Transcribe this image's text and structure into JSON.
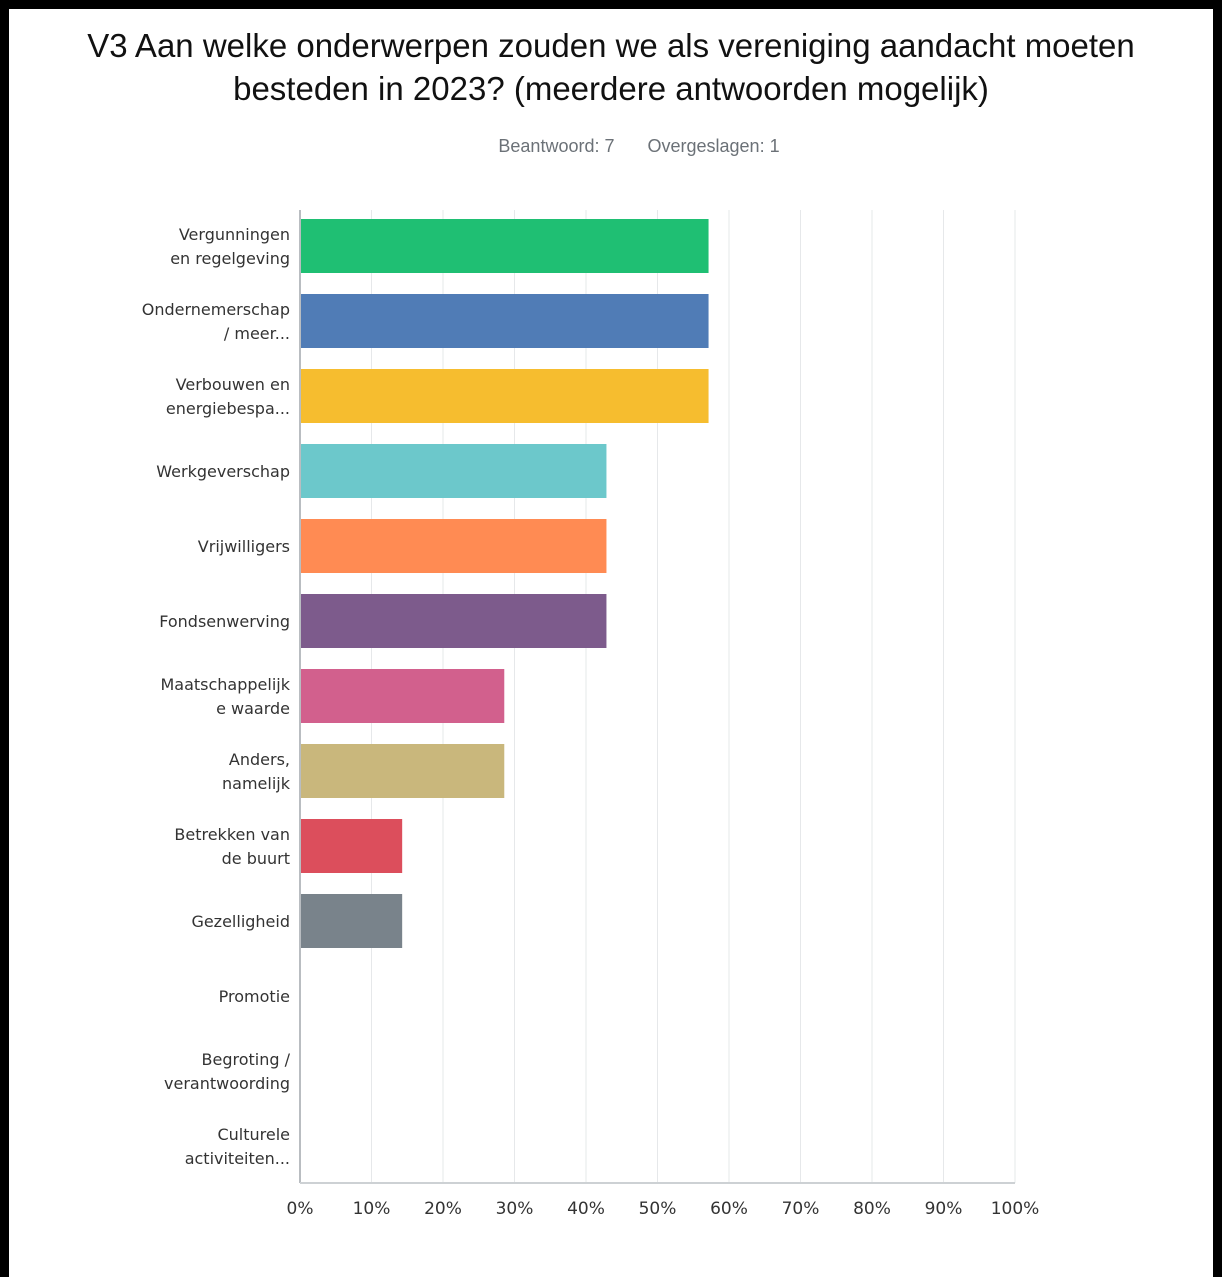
{
  "title_lines": [
    "V3 Aan welke onderwerpen zouden we als vereniging aandacht moeten",
    "besteden in 2023? (meerdere antwoorden mogelijk)"
  ],
  "respondents": {
    "answered": "Beantwoord: 7",
    "skipped": "Overgeslagen: 1"
  },
  "chart_data": {
    "type": "bar",
    "orientation": "horizontal",
    "grid": true,
    "xlim": [
      0,
      100
    ],
    "x_ticks": [
      "0%",
      "10%",
      "20%",
      "30%",
      "40%",
      "50%",
      "60%",
      "70%",
      "80%",
      "90%",
      "100%"
    ],
    "categories": [
      [
        "Vergunningen",
        "en regelgeving"
      ],
      [
        "Ondernemerschap",
        "/ meer..."
      ],
      [
        "Verbouwen en",
        "energiebespa..."
      ],
      [
        "Werkgeverschap"
      ],
      [
        "Vrijwilligers"
      ],
      [
        "Fondsenwerving"
      ],
      [
        "Maatschappelijk",
        "e waarde"
      ],
      [
        "Anders,",
        "namelijk"
      ],
      [
        "Betrekken van",
        "de buurt"
      ],
      [
        "Gezelligheid"
      ],
      [
        "Promotie"
      ],
      [
        "Begroting /",
        "verantwoording"
      ],
      [
        "Culturele",
        "activiteiten..."
      ]
    ],
    "values": [
      57.14,
      57.14,
      57.14,
      42.86,
      42.86,
      42.86,
      28.57,
      28.57,
      14.29,
      14.29,
      0,
      0,
      0
    ],
    "colors": [
      "#1fbf73",
      "#507cb6",
      "#f6bd2f",
      "#6cc8cb",
      "#ff8b53",
      "#7d5b8c",
      "#d2608d",
      "#c9b77c",
      "#dc4e5c",
      "#79838b",
      "#1fbf73",
      "#507cb6",
      "#f6bd2f"
    ]
  }
}
